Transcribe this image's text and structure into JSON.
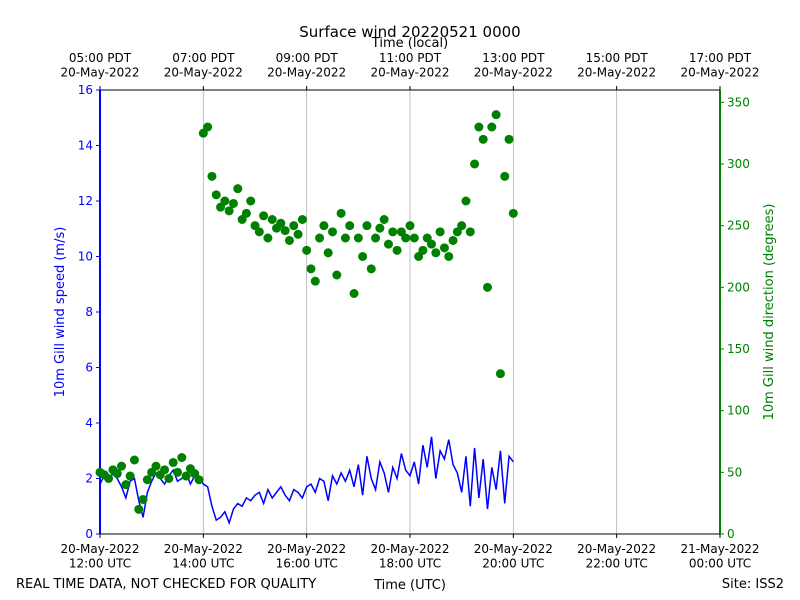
{
  "chart_data": {
    "type": "line-scatter",
    "title": "Surface wind 20220521 0000",
    "xlabel": "Time (UTC)",
    "x2label": "Time (local)",
    "ylabel": "10m Gill wind speed (m/s)",
    "y2label": "10m Gill wind direction (degrees)",
    "annotations": [
      "REAL TIME DATA, NOT CHECKED FOR QUALITY",
      "Site: ISS2"
    ],
    "grid": "x",
    "xlim": [
      "2022-05-20T12:00",
      "2022-05-21T00:00"
    ],
    "xticks": [
      {
        "value": "2022-05-20T12:00",
        "label": "20-May-2022\n12:00 UTC"
      },
      {
        "value": "2022-05-20T14:00",
        "label": "20-May-2022\n14:00 UTC"
      },
      {
        "value": "2022-05-20T16:00",
        "label": "20-May-2022\n16:00 UTC"
      },
      {
        "value": "2022-05-20T18:00",
        "label": "20-May-2022\n18:00 UTC"
      },
      {
        "value": "2022-05-20T20:00",
        "label": "20-May-2022\n20:00 UTC"
      },
      {
        "value": "2022-05-20T22:00",
        "label": "20-May-2022\n22:00 UTC"
      },
      {
        "value": "2022-05-21T00:00",
        "label": "21-May-2022\n00:00 UTC"
      }
    ],
    "x2ticks": [
      {
        "value": "2022-05-20T12:00",
        "label": "05:00 PDT\n20-May-2022"
      },
      {
        "value": "2022-05-20T14:00",
        "label": "07:00 PDT\n20-May-2022"
      },
      {
        "value": "2022-05-20T16:00",
        "label": "09:00 PDT\n20-May-2022"
      },
      {
        "value": "2022-05-20T18:00",
        "label": "11:00 PDT\n20-May-2022"
      },
      {
        "value": "2022-05-20T20:00",
        "label": "13:00 PDT\n20-May-2022"
      },
      {
        "value": "2022-05-20T22:00",
        "label": "15:00 PDT\n20-May-2022"
      },
      {
        "value": "2022-05-21T00:00",
        "label": "17:00 PDT\n20-May-2022"
      }
    ],
    "ylim": [
      0,
      16
    ],
    "yticks": [
      0,
      2,
      4,
      6,
      8,
      10,
      12,
      14,
      16
    ],
    "y2lim": [
      0,
      360
    ],
    "y2ticks": [
      0,
      50,
      100,
      150,
      200,
      250,
      300,
      350
    ],
    "x": [
      "2022-05-20T12:00",
      "2022-05-20T12:05",
      "2022-05-20T12:10",
      "2022-05-20T12:15",
      "2022-05-20T12:20",
      "2022-05-20T12:25",
      "2022-05-20T12:30",
      "2022-05-20T12:35",
      "2022-05-20T12:40",
      "2022-05-20T12:45",
      "2022-05-20T12:50",
      "2022-05-20T12:55",
      "2022-05-20T13:00",
      "2022-05-20T13:05",
      "2022-05-20T13:10",
      "2022-05-20T13:15",
      "2022-05-20T13:20",
      "2022-05-20T13:25",
      "2022-05-20T13:30",
      "2022-05-20T13:35",
      "2022-05-20T13:40",
      "2022-05-20T13:45",
      "2022-05-20T13:50",
      "2022-05-20T13:55",
      "2022-05-20T14:00",
      "2022-05-20T14:05",
      "2022-05-20T14:10",
      "2022-05-20T14:15",
      "2022-05-20T14:20",
      "2022-05-20T14:25",
      "2022-05-20T14:30",
      "2022-05-20T14:35",
      "2022-05-20T14:40",
      "2022-05-20T14:45",
      "2022-05-20T14:50",
      "2022-05-20T14:55",
      "2022-05-20T15:00",
      "2022-05-20T15:05",
      "2022-05-20T15:10",
      "2022-05-20T15:15",
      "2022-05-20T15:20",
      "2022-05-20T15:25",
      "2022-05-20T15:30",
      "2022-05-20T15:35",
      "2022-05-20T15:40",
      "2022-05-20T15:45",
      "2022-05-20T15:50",
      "2022-05-20T15:55",
      "2022-05-20T16:00",
      "2022-05-20T16:05",
      "2022-05-20T16:10",
      "2022-05-20T16:15",
      "2022-05-20T16:20",
      "2022-05-20T16:25",
      "2022-05-20T16:30",
      "2022-05-20T16:35",
      "2022-05-20T16:40",
      "2022-05-20T16:45",
      "2022-05-20T16:50",
      "2022-05-20T16:55",
      "2022-05-20T17:00",
      "2022-05-20T17:05",
      "2022-05-20T17:10",
      "2022-05-20T17:15",
      "2022-05-20T17:20",
      "2022-05-20T17:25",
      "2022-05-20T17:30",
      "2022-05-20T17:35",
      "2022-05-20T17:40",
      "2022-05-20T17:45",
      "2022-05-20T17:50",
      "2022-05-20T17:55",
      "2022-05-20T18:00",
      "2022-05-20T18:05",
      "2022-05-20T18:10",
      "2022-05-20T18:15",
      "2022-05-20T18:20",
      "2022-05-20T18:25",
      "2022-05-20T18:30",
      "2022-05-20T18:35",
      "2022-05-20T18:40",
      "2022-05-20T18:45",
      "2022-05-20T18:50",
      "2022-05-20T18:55",
      "2022-05-20T19:00",
      "2022-05-20T19:05",
      "2022-05-20T19:10",
      "2022-05-20T19:15",
      "2022-05-20T19:20",
      "2022-05-20T19:25",
      "2022-05-20T19:30",
      "2022-05-20T19:35",
      "2022-05-20T19:40",
      "2022-05-20T19:45",
      "2022-05-20T19:50",
      "2022-05-20T19:55",
      "2022-05-20T20:00"
    ],
    "series": [
      {
        "name": "10m Gill wind speed",
        "kind": "line",
        "axis": "y",
        "color": "#0000ff",
        "values": [
          1.8,
          2.1,
          1.9,
          2.2,
          2.0,
          1.7,
          1.3,
          1.9,
          2.0,
          1.2,
          0.6,
          1.5,
          1.9,
          2.2,
          2.0,
          1.8,
          2.1,
          2.3,
          1.9,
          2.0,
          2.2,
          1.8,
          2.1,
          2.0,
          1.8,
          1.7,
          1.0,
          0.5,
          0.6,
          0.8,
          0.4,
          0.9,
          1.1,
          1.0,
          1.3,
          1.2,
          1.4,
          1.5,
          1.1,
          1.6,
          1.3,
          1.5,
          1.7,
          1.4,
          1.2,
          1.6,
          1.5,
          1.3,
          1.7,
          1.8,
          1.5,
          2.0,
          1.9,
          1.2,
          2.1,
          1.8,
          2.2,
          1.9,
          2.3,
          1.7,
          2.5,
          1.4,
          2.8,
          2.0,
          1.6,
          2.6,
          2.2,
          1.5,
          2.4,
          2.0,
          2.9,
          2.3,
          2.1,
          2.6,
          1.8,
          3.2,
          2.4,
          3.5,
          2.0,
          3.0,
          2.7,
          3.4,
          2.5,
          2.2,
          1.5,
          2.8,
          1.0,
          3.1,
          1.3,
          2.7,
          0.9,
          2.4,
          1.6,
          3.0,
          1.1,
          2.8,
          2.6
        ]
      },
      {
        "name": "10m Gill wind direction",
        "kind": "scatter",
        "axis": "y2",
        "color": "#008000",
        "values": [
          50,
          48,
          45,
          52,
          49,
          55,
          40,
          47,
          60,
          20,
          28,
          44,
          50,
          55,
          48,
          52,
          45,
          58,
          50,
          62,
          47,
          53,
          49,
          44,
          325,
          330,
          290,
          275,
          265,
          270,
          262,
          268,
          280,
          255,
          260,
          270,
          250,
          245,
          258,
          240,
          255,
          248,
          252,
          246,
          238,
          250,
          243,
          255,
          230,
          215,
          205,
          240,
          250,
          228,
          245,
          210,
          260,
          240,
          250,
          195,
          240,
          225,
          250,
          215,
          240,
          248,
          255,
          235,
          245,
          230,
          245,
          240,
          250,
          240,
          225,
          230,
          240,
          235,
          228,
          245,
          232,
          225,
          238,
          245,
          250,
          270,
          245,
          300,
          330,
          320,
          200,
          330,
          340,
          130,
          290,
          320,
          260
        ]
      }
    ]
  }
}
